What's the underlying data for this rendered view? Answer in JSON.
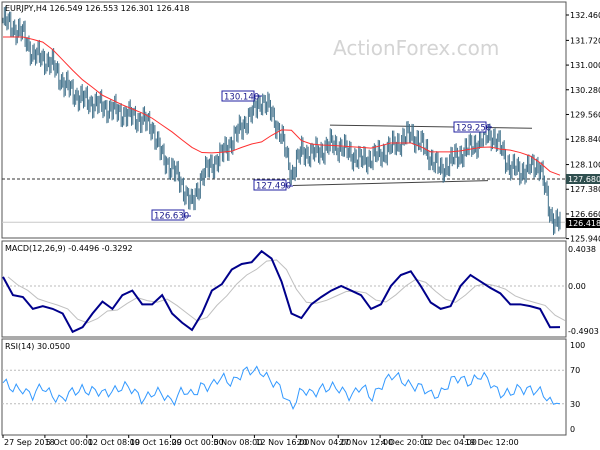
{
  "chart_data": [
    {
      "type": "ohlc",
      "title": "EURJPY,H4  126.549 126.553 126.301 126.418",
      "symbol": "EURJPY,H4",
      "ohlc_last": {
        "open": "126.549",
        "high": "126.553",
        "low": "126.301",
        "close": "126.418"
      },
      "y_ticks": [
        "132.460",
        "131.720",
        "131.000",
        "130.280",
        "129.560",
        "128.840",
        "128.100",
        "127.380",
        "126.660",
        "125.940"
      ],
      "ylim": [
        125.94,
        132.46
      ],
      "x_ticks": [
        "27 Sep 2018",
        "5 Oct 00:00",
        "12 Oct 08:00",
        "19 Oct 16:00",
        "29 Oct 00:00",
        "5 Nov 08:00",
        "12 Nov 16:00",
        "20 Nov 04:00",
        "27 Nov 12:00",
        "4 Dec 20:00",
        "12 Dec 04:00",
        "19 Dec 12:00"
      ],
      "close_series": [
        132.3,
        132.1,
        131.9,
        131.3,
        131.2,
        131.0,
        130.5,
        130.2,
        130.0,
        129.9,
        129.8,
        129.7,
        129.6,
        129.5,
        129.4,
        129.2,
        128.3,
        128.0,
        127.5,
        126.9,
        127.8,
        128.1,
        128.4,
        128.8,
        129.2,
        129.6,
        130.0,
        129.6,
        128.9,
        127.8,
        128.5,
        128.4,
        128.5,
        128.7,
        128.6,
        128.4,
        128.2,
        128.3,
        128.4,
        128.6,
        128.8,
        129.0,
        128.7,
        128.3,
        127.9,
        128.2,
        128.4,
        128.6,
        128.8,
        129.0,
        128.6,
        128.0,
        127.9,
        128.0,
        128.1,
        126.6,
        126.418
      ],
      "moving_average": {
        "color": "#ff3030",
        "values": [
          131.82,
          131.82,
          131.82,
          131.75,
          131.67,
          131.45,
          131.15,
          130.85,
          130.57,
          130.35,
          130.12,
          129.98,
          129.84,
          129.72,
          129.6,
          129.45,
          129.25,
          129.05,
          128.82,
          128.6,
          128.45,
          128.44,
          128.46,
          128.49,
          128.6,
          128.7,
          128.76,
          128.95,
          129.11,
          129.1,
          128.8,
          128.7,
          128.67,
          128.66,
          128.64,
          128.62,
          128.6,
          128.58,
          128.65,
          128.73,
          128.73,
          128.73,
          128.62,
          128.47,
          128.47,
          128.47,
          128.5,
          128.55,
          128.6,
          128.61,
          128.55,
          128.52,
          128.45,
          128.35,
          128.15,
          127.9,
          127.79
        ]
      },
      "bar_color": "#3f6f89",
      "annotations": [
        "130.140",
        "129.250",
        "127.490",
        "126.630"
      ],
      "levels": [
        {
          "label": "127.680",
          "value": 127.68,
          "style": "dashed",
          "tag_color": "#2f4f4f"
        },
        {
          "label": "126.418",
          "value": 126.418,
          "style": "current",
          "tag_color": "#000000"
        }
      ],
      "trendlines": [
        {
          "from": 129.25,
          "to": 129.16
        },
        {
          "from": 127.49,
          "to": 127.63
        }
      ]
    },
    {
      "type": "line",
      "title": "MACD(12,26,9) -0.4496 -0.3292",
      "y_ticks": [
        "0.4038",
        "0.00",
        "-0.4903"
      ],
      "ylim": [
        -0.4903,
        0.4038
      ],
      "macd_color": "#00008b",
      "signal_color": "#c0c0c0",
      "macd": [
        0.1,
        -0.1,
        -0.12,
        -0.25,
        -0.22,
        -0.25,
        -0.3,
        -0.5,
        -0.45,
        -0.3,
        -0.17,
        -0.25,
        -0.1,
        -0.05,
        -0.2,
        -0.2,
        -0.1,
        -0.3,
        -0.4,
        -0.48,
        -0.3,
        -0.05,
        0.02,
        0.18,
        0.24,
        0.26,
        0.38,
        0.3,
        0.05,
        -0.3,
        -0.35,
        -0.2,
        -0.12,
        -0.05,
        0.0,
        -0.05,
        -0.1,
        -0.25,
        -0.2,
        0.0,
        0.12,
        0.16,
        0.0,
        -0.18,
        -0.25,
        -0.22,
        0.0,
        0.12,
        0.05,
        -0.02,
        -0.08,
        -0.2,
        -0.2,
        -0.22,
        -0.25,
        -0.45,
        -0.4496
      ]
    },
    {
      "type": "line",
      "title": "RSI(14) 30.0500",
      "y_ticks": [
        "100",
        "70",
        "30",
        "0"
      ],
      "ylim": [
        0,
        100
      ],
      "levels": [
        70,
        30
      ],
      "color": "#3399ff",
      "values": [
        55,
        45,
        50,
        40,
        48,
        42,
        35,
        42,
        50,
        45,
        40,
        48,
        50,
        45,
        38,
        42,
        40,
        35,
        45,
        38,
        55,
        50,
        60,
        58,
        65,
        68,
        72,
        55,
        45,
        28,
        45,
        40,
        52,
        48,
        45,
        42,
        50,
        35,
        55,
        62,
        58,
        55,
        48,
        40,
        45,
        55,
        60,
        58,
        62,
        55,
        45,
        40,
        48,
        50,
        42,
        32,
        30.05
      ]
    }
  ],
  "watermark": "ActionForex.com"
}
